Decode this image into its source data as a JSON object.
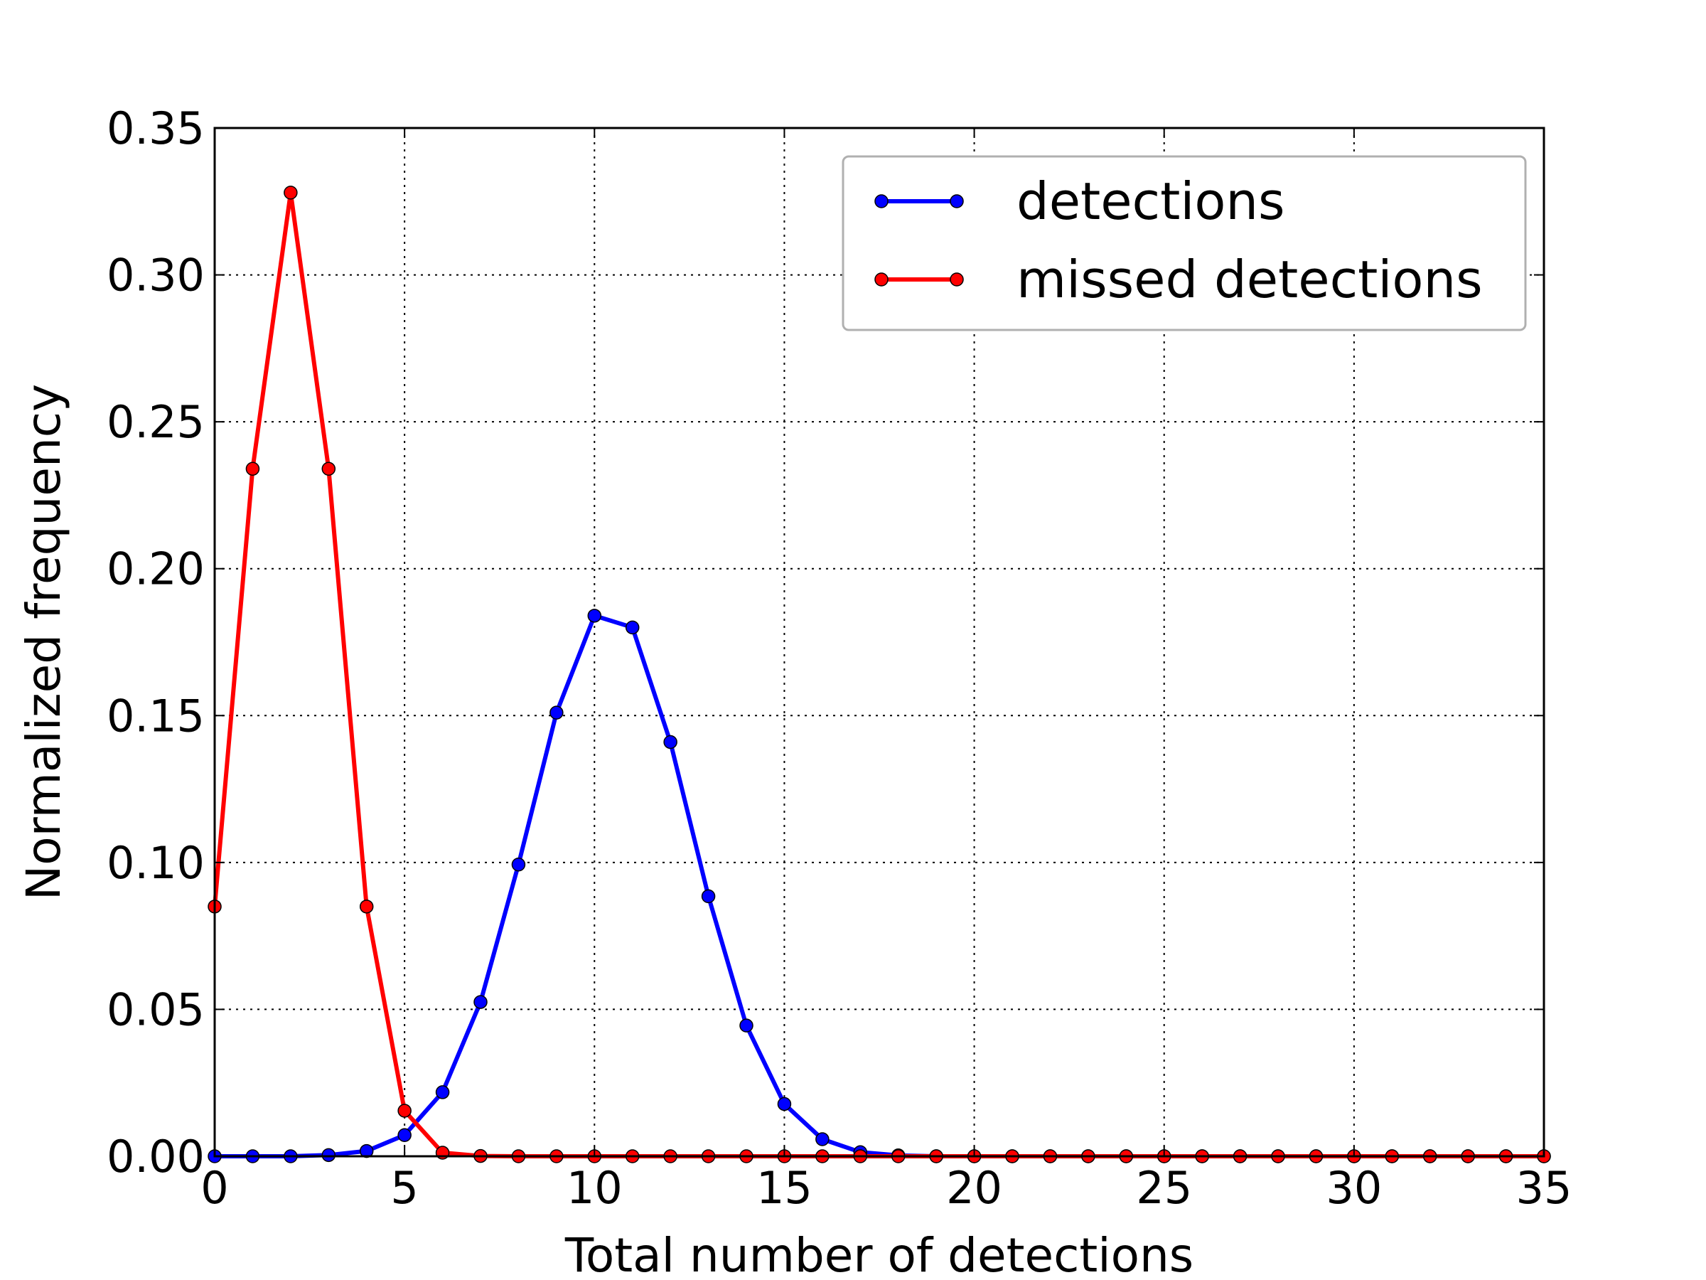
{
  "chart_data": {
    "type": "line",
    "title": "",
    "xlabel": "Total number of detections",
    "ylabel": "Normalized frequency",
    "xlim": [
      0,
      35
    ],
    "ylim": [
      0,
      0.35
    ],
    "xticks": [
      0,
      5,
      10,
      15,
      20,
      25,
      30,
      35
    ],
    "xtick_labels": [
      "0",
      "5",
      "10",
      "15",
      "20",
      "25",
      "30",
      "35"
    ],
    "yticks": [
      0,
      0.05,
      0.1,
      0.15,
      0.2,
      0.25,
      0.3,
      0.35
    ],
    "ytick_labels": [
      "0.00",
      "0.05",
      "0.10",
      "0.15",
      "0.20",
      "0.25",
      "0.30",
      "0.35"
    ],
    "grid": true,
    "legend_position": "top-right",
    "x": [
      0,
      1,
      2,
      3,
      4,
      5,
      6,
      7,
      8,
      9,
      10,
      11,
      12,
      13,
      14,
      15,
      16,
      17,
      18,
      19,
      20,
      21,
      22,
      23,
      24,
      25,
      26,
      27,
      28,
      29,
      30,
      31,
      32,
      33,
      34,
      35
    ],
    "series": [
      {
        "name": "detections",
        "color": "#0000ff",
        "values": [
          0.0,
          0.0,
          0.0,
          0.0004,
          0.0018,
          0.0072,
          0.0218,
          0.0525,
          0.0993,
          0.151,
          0.184,
          0.18,
          0.141,
          0.0885,
          0.0445,
          0.0178,
          0.0058,
          0.0014,
          0.0003,
          0.0,
          0.0,
          0.0,
          0.0,
          0.0,
          0.0,
          0.0,
          0.0,
          0.0,
          0.0,
          0.0,
          0.0,
          0.0,
          0.0,
          0.0,
          0.0,
          0.0
        ]
      },
      {
        "name": "missed detections",
        "color": "#ff0000",
        "values": [
          0.085,
          0.234,
          0.328,
          0.234,
          0.085,
          0.0155,
          0.0012,
          0.0001,
          0.0,
          0.0,
          0.0,
          0.0,
          0.0,
          0.0,
          0.0,
          0.0,
          0.0,
          0.0,
          0.0,
          0.0,
          0.0,
          0.0,
          0.0,
          0.0,
          0.0,
          0.0,
          0.0,
          0.0,
          0.0,
          0.0,
          0.0,
          0.0,
          0.0,
          0.0,
          0.0,
          0.0
        ]
      }
    ]
  }
}
